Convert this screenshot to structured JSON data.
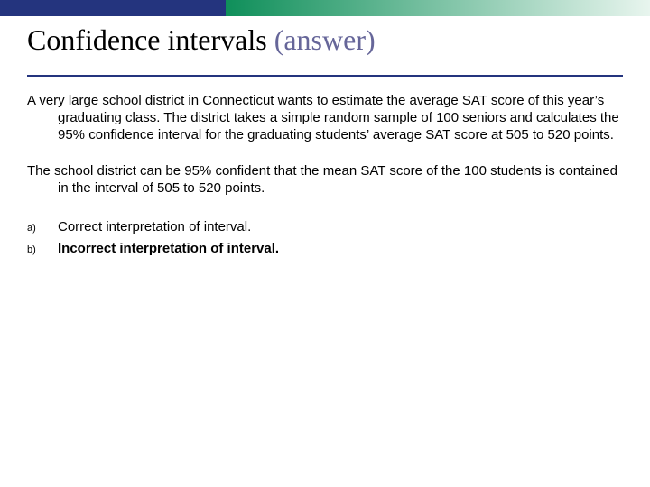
{
  "colors": {
    "bar_solid": "#24347e",
    "bar_gradient_start": "#0f8f5a",
    "bar_gradient_end": "#e8f5ee",
    "title_main": "#000000",
    "title_paren": "#666699",
    "underline": "#24347e",
    "body_text": "#000000"
  },
  "title": {
    "main": "Confidence intervals ",
    "paren": "(answer)",
    "fontsize": 32,
    "font_family": "Times New Roman"
  },
  "paragraph1": "A very large school district in Connecticut wants to estimate the average SAT score of this year’s graduating class.  The district takes a simple random sample of 100 seniors and calculates the 95% confidence interval for the graduating students’ average SAT score at 505 to 520 points.",
  "paragraph2": "The school district can be 95% confident that the mean SAT score of the 100 students is contained in the interval of 505 to 520 points.",
  "options": [
    {
      "letter": "a)",
      "text": "Correct interpretation of interval.",
      "bold": false
    },
    {
      "letter": "b)",
      "text": "Incorrect interpretation of interval.",
      "bold": true
    }
  ],
  "body_fontsize": 15,
  "option_letter_fontsize": 11
}
